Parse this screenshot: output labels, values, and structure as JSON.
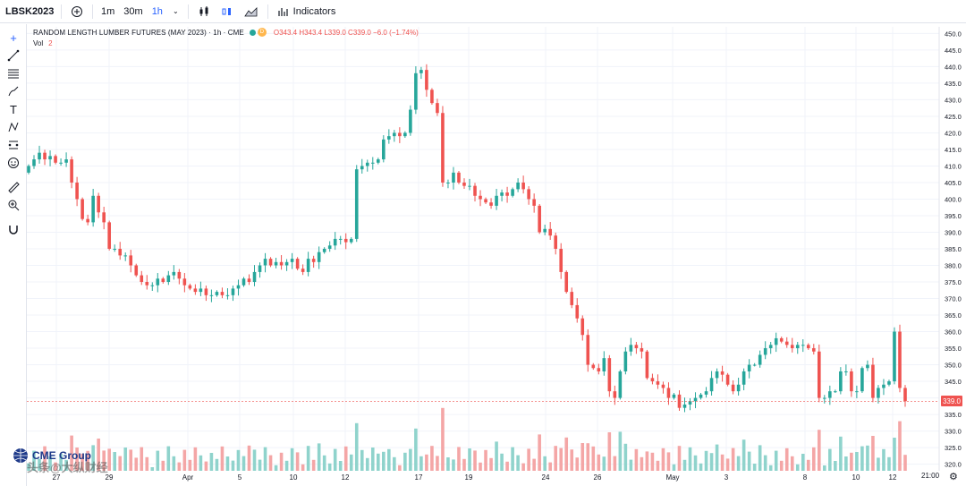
{
  "toolbar": {
    "symbol": "LBSK2023",
    "intervals": [
      "1m",
      "30m",
      "1h"
    ],
    "active_interval": "1h",
    "indicators_label": "Indicators"
  },
  "legend": {
    "title": "RANDOM LENGTH LUMBER FUTURES (MAY 2023) · 1h · CME",
    "badge": "D",
    "ohlc": "O343.4  H343.4  L339.0  C339.0  −6.0 (−1.74%)",
    "vol_label": "Vol",
    "vol_value": "2"
  },
  "last_price_label": "339.0",
  "time_label": "21:00",
  "logo": {
    "text": "CME Group"
  },
  "watermark": {
    "text": "头条@大纵财经"
  },
  "colors": {
    "up": "#26a69a",
    "down": "#ef5350",
    "vol_up": "#8fd3cc",
    "vol_down": "#f4a6a6"
  },
  "icons": [
    "plus-circle-icon",
    "chart-type-icon",
    "cursor-icon",
    "trendline-icon",
    "fib-icon",
    "brush-icon",
    "text-icon",
    "pattern-icon",
    "measure-icon",
    "emoji-icon",
    "ruler-icon",
    "zoom-icon",
    "magnet-icon",
    "gear-icon"
  ],
  "chart_data": {
    "type": "candlestick",
    "ylim": [
      318,
      452
    ],
    "y_ticks": [
      320,
      325,
      330,
      335,
      340,
      345,
      350,
      355,
      360,
      365,
      370,
      375,
      380,
      385,
      390,
      395,
      400,
      405,
      410,
      415,
      420,
      425,
      430,
      435,
      440,
      445,
      450
    ],
    "x_tick_labels": [
      "27",
      "29",
      "Apr",
      "5",
      "10",
      "12",
      "17",
      "19",
      "24",
      "26",
      "May",
      "3",
      "8",
      "10",
      "12"
    ],
    "last_price": 339.0,
    "closes": [
      410,
      412,
      414,
      412,
      413,
      411,
      411,
      412,
      405,
      400,
      394,
      393,
      401,
      396,
      393,
      385,
      385,
      383,
      383,
      380,
      377,
      375,
      374,
      374,
      376,
      375,
      377,
      378,
      376,
      374,
      373,
      372,
      373,
      371,
      371,
      372,
      371,
      371,
      373,
      374,
      376,
      375,
      378,
      380,
      382,
      380,
      381,
      380,
      381,
      382,
      379,
      378,
      382,
      381,
      384,
      385,
      386,
      388,
      388,
      387,
      388,
      409,
      410,
      411,
      411,
      412,
      418,
      419,
      420,
      419,
      420,
      427,
      438,
      439,
      433,
      429,
      426,
      405,
      405,
      408,
      405,
      404,
      404,
      401,
      400,
      399,
      398,
      401,
      402,
      401,
      403,
      405,
      403,
      400,
      398,
      390,
      391,
      389,
      385,
      378,
      372,
      368,
      364,
      359,
      350,
      349,
      348,
      352,
      342,
      340,
      348,
      354,
      356,
      355,
      354,
      346,
      345,
      344,
      343,
      340,
      341,
      337,
      338,
      339,
      340,
      341,
      342,
      346,
      348,
      347,
      344,
      342,
      344,
      348,
      350,
      350,
      353,
      355,
      356,
      358,
      357,
      356,
      355,
      356,
      356,
      355,
      354,
      340,
      340,
      342,
      342,
      348,
      348,
      342,
      342,
      349,
      350,
      340,
      343,
      344,
      345,
      360,
      343,
      339
    ]
  }
}
